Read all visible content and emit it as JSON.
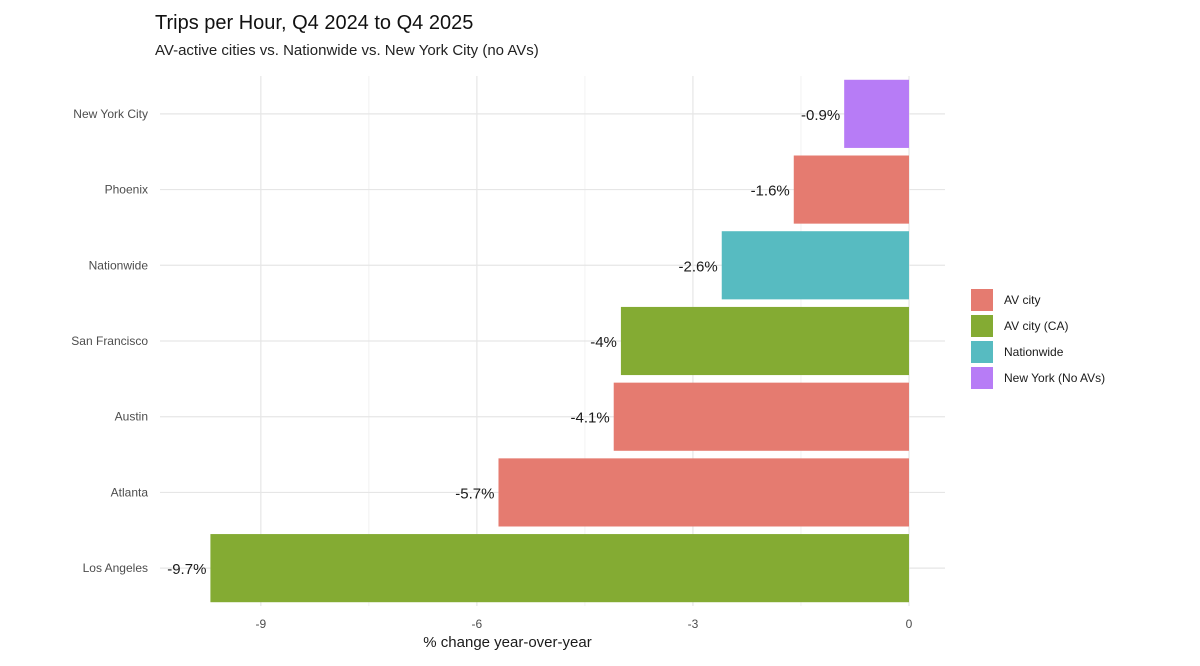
{
  "chart_data": {
    "type": "bar",
    "orientation": "horizontal",
    "title": "Trips per Hour, Q4 2024 to Q4 2025",
    "subtitle": "AV-active cities vs. Nationwide vs. New York City (no AVs)",
    "xlabel": "% change year-over-year",
    "ylabel": "",
    "xlim": [
      -10.4,
      0.5
    ],
    "x_ticks": [
      -9,
      -6,
      -3,
      0
    ],
    "grid": true,
    "legend_position": "right",
    "categories": [
      "New York City",
      "Phoenix",
      "Nationwide",
      "San Francisco",
      "Austin",
      "Atlanta",
      "Los Angeles"
    ],
    "values": [
      -0.9,
      -1.6,
      -2.6,
      -4.0,
      -4.1,
      -5.7,
      -9.7
    ],
    "value_labels": [
      "-0.9%",
      "-1.6%",
      "-2.6%",
      "-4%",
      "-4.1%",
      "-5.7%",
      "-9.7%"
    ],
    "groups": [
      "New York (No AVs)",
      "AV city",
      "Nationwide",
      "AV city (CA)",
      "AV city",
      "AV city",
      "AV city (CA)"
    ],
    "legend": [
      {
        "name": "AV city",
        "color": "#E57B70"
      },
      {
        "name": "AV city (CA)",
        "color": "#84AB33"
      },
      {
        "name": "Nationwide",
        "color": "#57BBC1"
      },
      {
        "name": "New York (No AVs)",
        "color": "#B77CF6"
      }
    ]
  }
}
